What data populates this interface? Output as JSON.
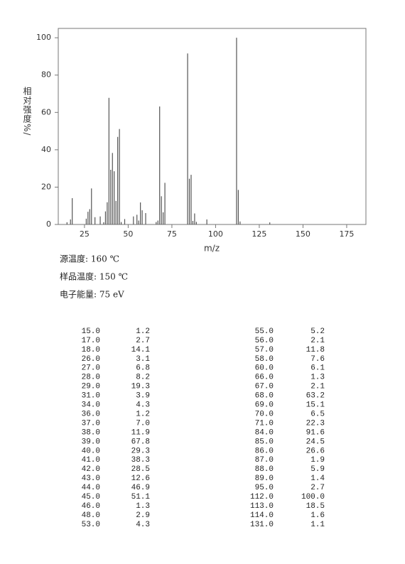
{
  "chart_data": {
    "type": "stick",
    "x_label": "m/z",
    "y_label": "相对强度%/",
    "x": [
      15,
      17,
      18,
      26,
      27,
      28,
      29,
      31,
      34,
      36,
      37,
      38,
      39,
      40,
      41,
      42,
      43,
      44,
      45,
      46,
      48,
      53,
      55,
      56,
      57,
      58,
      60,
      66,
      67,
      68,
      69,
      70,
      71,
      84,
      85,
      86,
      87,
      88,
      89,
      95,
      112,
      113,
      114,
      131
    ],
    "values": [
      1.2,
      2.7,
      14.1,
      3.1,
      6.8,
      8.2,
      19.3,
      3.9,
      4.3,
      1.2,
      7.0,
      11.9,
      67.8,
      29.3,
      38.3,
      28.5,
      12.6,
      46.9,
      51.1,
      1.3,
      2.9,
      4.3,
      5.2,
      2.1,
      11.8,
      7.6,
      6.1,
      1.3,
      2.1,
      63.2,
      15.1,
      6.5,
      22.3,
      91.6,
      24.5,
      26.6,
      1.9,
      5.9,
      1.4,
      2.7,
      100.0,
      18.5,
      1.6,
      1.1
    ],
    "color": "#555555",
    "xlim": [
      10,
      186
    ],
    "xticks": [
      25,
      50,
      75,
      100,
      125,
      150,
      175
    ],
    "ylim": [
      0,
      105
    ],
    "yticks": [
      0,
      20,
      40,
      60,
      80,
      100
    ]
  },
  "info": [
    "源温度: 160 ℃",
    "样品温度: 150 ℃",
    "电子能量: 75 eV"
  ],
  "table": {
    "left": [
      [
        "15.0",
        "1.2"
      ],
      [
        "17.0",
        "2.7"
      ],
      [
        "18.0",
        "14.1"
      ],
      [
        "26.0",
        "3.1"
      ],
      [
        "27.0",
        "6.8"
      ],
      [
        "28.0",
        "8.2"
      ],
      [
        "29.0",
        "19.3"
      ],
      [
        "31.0",
        "3.9"
      ],
      [
        "34.0",
        "4.3"
      ],
      [
        "36.0",
        "1.2"
      ],
      [
        "37.0",
        "7.0"
      ],
      [
        "38.0",
        "11.9"
      ],
      [
        "39.0",
        "67.8"
      ],
      [
        "40.0",
        "29.3"
      ],
      [
        "41.0",
        "38.3"
      ],
      [
        "42.0",
        "28.5"
      ],
      [
        "43.0",
        "12.6"
      ],
      [
        "44.0",
        "46.9"
      ],
      [
        "45.0",
        "51.1"
      ],
      [
        "46.0",
        "1.3"
      ],
      [
        "48.0",
        "2.9"
      ],
      [
        "53.0",
        "4.3"
      ]
    ],
    "right": [
      [
        "55.0",
        "5.2"
      ],
      [
        "56.0",
        "2.1"
      ],
      [
        "57.0",
        "11.8"
      ],
      [
        "58.0",
        "7.6"
      ],
      [
        "60.0",
        "6.1"
      ],
      [
        "66.0",
        "1.3"
      ],
      [
        "67.0",
        "2.1"
      ],
      [
        "68.0",
        "63.2"
      ],
      [
        "69.0",
        "15.1"
      ],
      [
        "70.0",
        "6.5"
      ],
      [
        "71.0",
        "22.3"
      ],
      [
        "84.0",
        "91.6"
      ],
      [
        "85.0",
        "24.5"
      ],
      [
        "86.0",
        "26.6"
      ],
      [
        "87.0",
        "1.9"
      ],
      [
        "88.0",
        "5.9"
      ],
      [
        "89.0",
        "1.4"
      ],
      [
        "95.0",
        "2.7"
      ],
      [
        "112.0",
        "100.0"
      ],
      [
        "113.0",
        "18.5"
      ],
      [
        "114.0",
        "1.6"
      ],
      [
        "131.0",
        "1.1"
      ]
    ]
  }
}
